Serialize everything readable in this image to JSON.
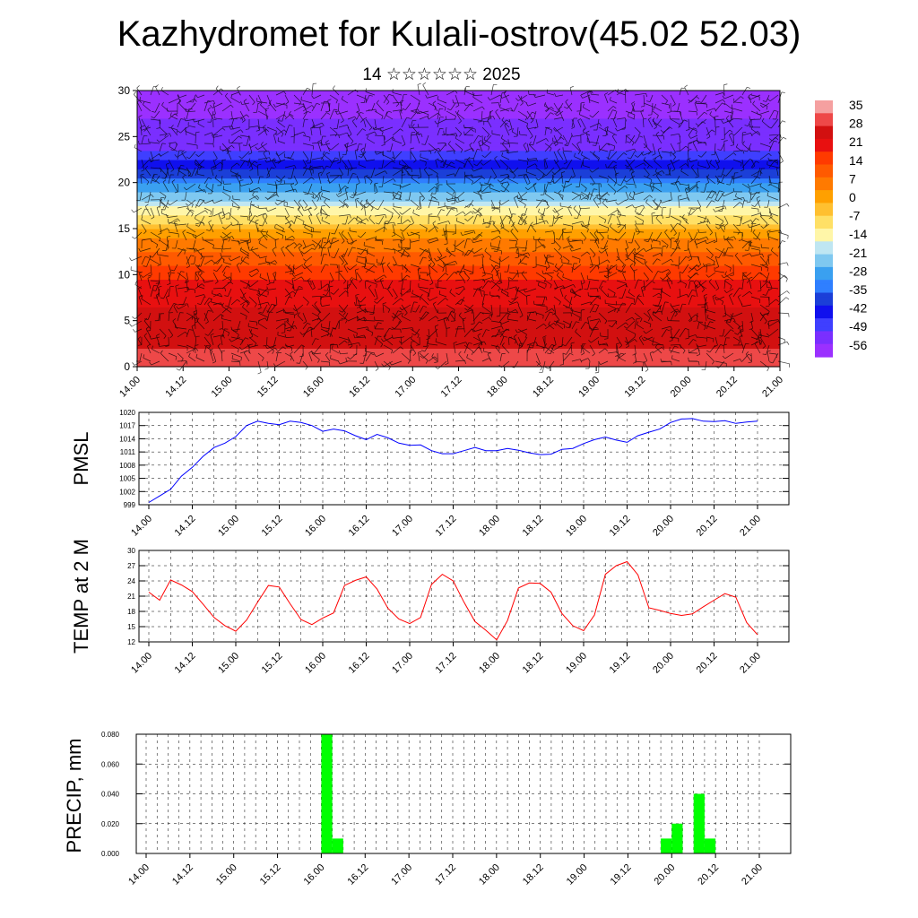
{
  "page": {
    "title": "Kazhydromet for Kulali-ostrov(45.02 52.03)",
    "subtitle": "14 ☆☆☆☆☆☆ 2025"
  },
  "colors": {
    "wind_barbs": "#000000",
    "pmsl_line": "#0000ff",
    "temp_line": "#ff0000",
    "precip_bar": "#00ff00",
    "colormap": [
      "#9b30ff",
      "#7a2fff",
      "#3f3fff",
      "#1010ee",
      "#1b3fd8",
      "#2f7fff",
      "#3aa0f0",
      "#7fc8f0",
      "#bfe6f2",
      "#fff6a8",
      "#ffe066",
      "#ffc030",
      "#ffa000",
      "#ff7a00",
      "#ff5a00",
      "#ff3a00",
      "#e81010",
      "#d21010",
      "#ee4848",
      "#f5a0a0"
    ]
  },
  "chart_data": [
    {
      "type": "heatmap",
      "title": "",
      "xlabel": "",
      "ylabel": "",
      "x_ticks": [
        "14.00",
        "14.12",
        "15.00",
        "15.12",
        "16.00",
        "16.12",
        "17.00",
        "17.12",
        "18.00",
        "18.12",
        "19.00",
        "19.12",
        "20.00",
        "20.12",
        "21.00"
      ],
      "y_ticks": [
        0,
        5,
        10,
        15,
        20,
        25,
        30
      ],
      "ylim": [
        0,
        30
      ],
      "colorbar_labels": [
        35,
        28,
        21,
        14,
        7,
        0,
        -7,
        -14,
        -21,
        -28,
        -35,
        -42,
        -49,
        -56
      ],
      "value_range": [
        -60,
        38
      ],
      "temperature_profile": {
        "levels": [
          0,
          2,
          4,
          6,
          8,
          10,
          12,
          14,
          15,
          16,
          17,
          18,
          19,
          20,
          21,
          22,
          23,
          24,
          25,
          26,
          27,
          28,
          29,
          30
        ],
        "values": [
          30,
          28,
          26,
          24,
          21,
          17,
          10,
          3,
          -2,
          -8,
          -14,
          -20,
          -26,
          -32,
          -38,
          -44,
          -49,
          -53,
          -54,
          -53,
          -55,
          -57,
          -59,
          -60
        ]
      },
      "overlay": "wind barbs"
    },
    {
      "type": "line",
      "title": "",
      "ylabel": "PMSL",
      "x_ticks": [
        "14.00",
        "14.12",
        "15.00",
        "15.12",
        "16.00",
        "16.12",
        "17.00",
        "17.12",
        "18.00",
        "18.12",
        "19.00",
        "19.12",
        "20.00",
        "20.12",
        "21.00"
      ],
      "y_ticks": [
        999,
        1002,
        1005,
        1008,
        1011,
        1014,
        1017,
        1020
      ],
      "ylim": [
        999,
        1020
      ],
      "grid": true,
      "series": [
        {
          "x_hours": [
            0,
            3,
            6,
            9,
            12,
            15,
            18,
            21,
            24,
            27,
            30,
            33,
            36,
            39,
            42,
            45,
            48,
            51,
            54,
            57,
            60,
            63,
            66,
            69,
            72,
            75,
            78,
            81,
            84,
            87,
            90,
            93,
            96,
            99,
            102,
            105,
            108,
            111,
            114,
            117,
            120,
            123,
            126,
            129,
            132,
            135,
            138,
            141,
            144,
            147,
            150,
            153,
            156,
            159,
            162,
            165,
            168
          ],
          "values": [
            999.5,
            1001,
            1002.5,
            1005.5,
            1007.5,
            1010,
            1012,
            1013,
            1014.5,
            1017,
            1018,
            1017.5,
            1017.2,
            1018,
            1017.7,
            1017,
            1015.7,
            1016.2,
            1015.8,
            1014.7,
            1013.8,
            1015,
            1014.2,
            1013,
            1012.5,
            1012.6,
            1011.3,
            1010.6,
            1010.6,
            1011.3,
            1012,
            1011.3,
            1011.3,
            1011.8,
            1011.4,
            1010.8,
            1010.4,
            1010.5,
            1011.6,
            1011.8,
            1012.9,
            1013.8,
            1014.4,
            1013.7,
            1013.2,
            1014.7,
            1015.5,
            1016.2,
            1017.7,
            1018.5,
            1018.6,
            1018,
            1017.9,
            1018.1,
            1017.5,
            1017.8,
            1018
          ]
        }
      ]
    },
    {
      "type": "line",
      "title": "",
      "ylabel": "TEMP at 2 M",
      "x_ticks": [
        "14.00",
        "14.12",
        "15.00",
        "15.12",
        "16.00",
        "16.12",
        "17.00",
        "17.12",
        "18.00",
        "18.12",
        "19.00",
        "19.12",
        "20.00",
        "20.12",
        "21.00"
      ],
      "y_ticks": [
        12,
        15,
        18,
        21,
        24,
        27,
        30
      ],
      "ylim": [
        12,
        30
      ],
      "grid": true,
      "series": [
        {
          "x_hours": [
            0,
            3,
            6,
            9,
            12,
            15,
            18,
            21,
            24,
            27,
            30,
            33,
            36,
            39,
            42,
            45,
            48,
            51,
            54,
            57,
            60,
            63,
            66,
            69,
            72,
            75,
            78,
            81,
            84,
            87,
            90,
            93,
            96,
            99,
            102,
            105,
            108,
            111,
            114,
            117,
            120,
            123,
            126,
            129,
            132,
            135,
            138,
            141,
            144,
            147,
            150,
            153,
            156,
            159,
            162,
            165,
            168
          ],
          "values": [
            21.8,
            20.2,
            24.2,
            23.2,
            21.9,
            19.4,
            16.8,
            15.2,
            14.1,
            16.3,
            19.8,
            23.1,
            22.8,
            19.5,
            16.4,
            15.4,
            16.7,
            17.7,
            23.1,
            24.1,
            24.8,
            22.4,
            18.6,
            16.5,
            15.6,
            16.8,
            23.3,
            25.3,
            24,
            19.8,
            16,
            14.3,
            12.4,
            16.2,
            22.6,
            23.6,
            23.5,
            21.8,
            17.6,
            15.2,
            14.2,
            17.3,
            25.3,
            27,
            27.8,
            25.2,
            18.7,
            18.2,
            17.6,
            17.2,
            17.5,
            18.9,
            20.2,
            21.5,
            20.8,
            15.8,
            13.4
          ]
        }
      ]
    },
    {
      "type": "bar",
      "title": "",
      "ylabel": "PRECIP, mm",
      "x_ticks": [
        "14.00",
        "14.12",
        "15.00",
        "15.12",
        "16.00",
        "16.12",
        "17.00",
        "17.12",
        "18.00",
        "18.12",
        "19.00",
        "19.12",
        "20.00",
        "20.12",
        "21.00"
      ],
      "y_ticks": [
        "0.000",
        "0.020",
        "0.040",
        "0.060",
        "0.080"
      ],
      "ylim": [
        0,
        0.08
      ],
      "grid": true,
      "bar_width_hours": 3,
      "bars": [
        {
          "x_hours": 48,
          "value": 0.08
        },
        {
          "x_hours": 51,
          "value": 0.01
        },
        {
          "x_hours": 141,
          "value": 0.01
        },
        {
          "x_hours": 144,
          "value": 0.02
        },
        {
          "x_hours": 150,
          "value": 0.04
        },
        {
          "x_hours": 153,
          "value": 0.01
        }
      ]
    }
  ]
}
